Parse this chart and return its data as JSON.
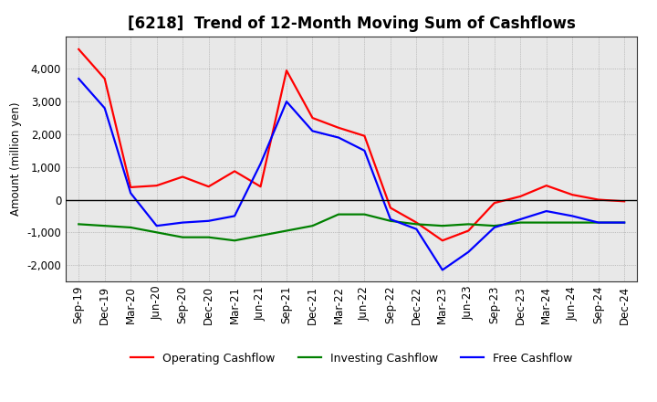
{
  "title": "[6218]  Trend of 12-Month Moving Sum of Cashflows",
  "ylabel": "Amount (million yen)",
  "x_labels": [
    "Sep-19",
    "Dec-19",
    "Mar-20",
    "Jun-20",
    "Sep-20",
    "Dec-20",
    "Mar-21",
    "Jun-21",
    "Sep-21",
    "Dec-21",
    "Mar-22",
    "Jun-22",
    "Sep-22",
    "Dec-22",
    "Mar-23",
    "Jun-23",
    "Sep-23",
    "Dec-23",
    "Mar-24",
    "Jun-24",
    "Sep-24",
    "Dec-24"
  ],
  "operating_cashflow": [
    4600,
    3700,
    380,
    430,
    700,
    400,
    870,
    400,
    3950,
    2500,
    2200,
    1950,
    -250,
    -700,
    -1250,
    -950,
    -100,
    100,
    430,
    150,
    0,
    -50
  ],
  "investing_cashflow": [
    -750,
    -800,
    -850,
    -1000,
    -1150,
    -1150,
    -1250,
    -1100,
    -950,
    -800,
    -450,
    -450,
    -650,
    -750,
    -800,
    -750,
    -800,
    -700,
    -700,
    -700,
    -700,
    -700
  ],
  "free_cashflow": [
    3700,
    2800,
    200,
    -800,
    -700,
    -650,
    -500,
    1100,
    3000,
    2100,
    1900,
    1500,
    -600,
    -900,
    -2150,
    -1600,
    -850,
    -600,
    -350,
    -500,
    -700,
    -700
  ],
  "operating_color": "#FF0000",
  "investing_color": "#008000",
  "free_color": "#0000FF",
  "ylim": [
    -2500,
    5000
  ],
  "yticks": [
    -2000,
    -1000,
    0,
    1000,
    2000,
    3000,
    4000
  ],
  "background_color": "#FFFFFF",
  "grid_color": "#999999",
  "title_fontsize": 12,
  "axis_fontsize": 8.5,
  "legend_fontsize": 9,
  "line_width": 1.6
}
